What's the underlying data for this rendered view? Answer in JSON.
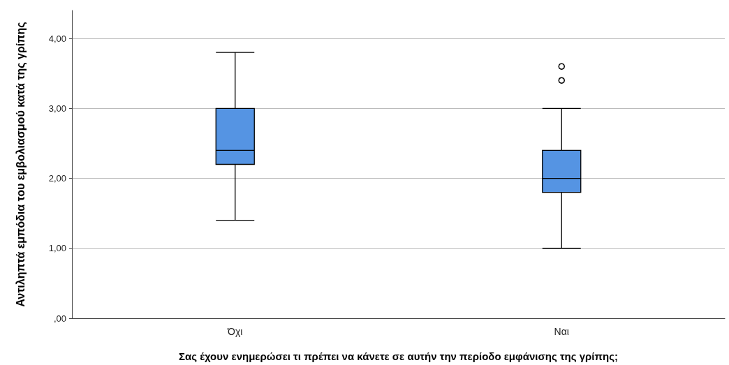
{
  "chart_data": {
    "type": "box",
    "xlabel": "Σας έχουν ενημερώσει τι πρέπει να κάνετε σε αυτήν την περίοδο εμφάνισης της γρίπης;",
    "ylabel": "Αντιληπτά εμπόδια του εμβολιασμού κατά της γρίπης",
    "categories": [
      "Όχι",
      "Ναι"
    ],
    "boxes": [
      {
        "low": 1.4,
        "q1": 2.2,
        "median": 2.4,
        "q3": 3.0,
        "high": 3.8
      },
      {
        "low": 1.0,
        "q1": 1.8,
        "median": 2.0,
        "q3": 2.4,
        "high": 3.0,
        "outliers": [
          3.4,
          3.6
        ]
      }
    ],
    "color": "#5594e3",
    "ylim": [
      0,
      4.4
    ],
    "yticks": [
      {
        "value": 0,
        "label": ",00"
      },
      {
        "value": 1,
        "label": "1,00"
      },
      {
        "value": 2,
        "label": "2,00"
      },
      {
        "value": 3,
        "label": "3,00"
      },
      {
        "value": 4,
        "label": "4,00"
      }
    ],
    "grid": "y"
  }
}
